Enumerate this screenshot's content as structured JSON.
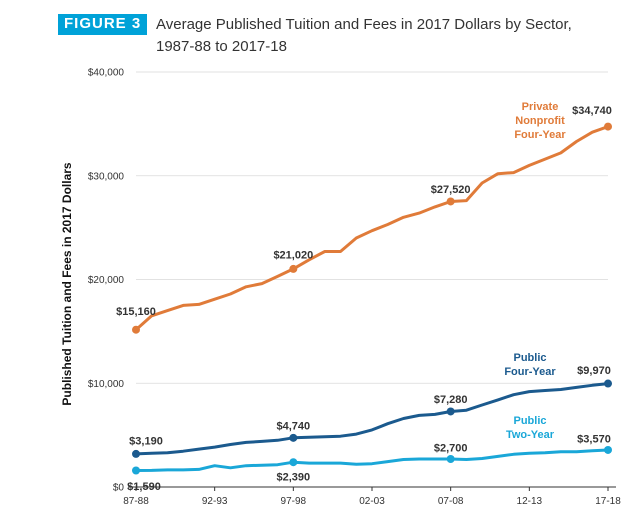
{
  "figure": {
    "badge": "FIGURE 3",
    "title_line1": "Average Published Tuition and Fees in 2017 Dollars by Sector,",
    "title_line2": "1987-88 to 2017-18"
  },
  "chart_data": {
    "type": "line",
    "title": "Average Published Tuition and Fees in 2017 Dollars by Sector, 1987-88 to 2017-18",
    "ylabel": "Published Tuition and Fees in 2017 Dollars",
    "xlabel": "",
    "ylim": [
      0,
      40000
    ],
    "yticks": [
      0,
      10000,
      20000,
      30000,
      40000
    ],
    "ytick_labels": [
      "$0",
      "$10,000",
      "$20,000",
      "$30,000",
      "$40,000"
    ],
    "x": [
      "87-88",
      "88-89",
      "89-90",
      "90-91",
      "91-92",
      "92-93",
      "93-94",
      "94-95",
      "95-96",
      "96-97",
      "97-98",
      "98-99",
      "99-00",
      "00-01",
      "01-02",
      "02-03",
      "03-04",
      "04-05",
      "05-06",
      "06-07",
      "07-08",
      "08-09",
      "09-10",
      "10-11",
      "11-12",
      "12-13",
      "13-14",
      "14-15",
      "15-16",
      "16-17",
      "17-18"
    ],
    "xtick_labels": [
      "87-88",
      "92-93",
      "97-98",
      "02-03",
      "07-08",
      "12-13",
      "17-18"
    ],
    "xtick_indices": [
      0,
      5,
      10,
      15,
      20,
      25,
      30
    ],
    "grid": "horizontal",
    "series": [
      {
        "name": "Private Nonprofit Four-Year",
        "name_lines": [
          "Private",
          "Nonprofit",
          "Four-Year"
        ],
        "color": "#e07b39",
        "values": [
          15160,
          16500,
          17000,
          17500,
          17600,
          18100,
          18600,
          19300,
          19600,
          20300,
          21020,
          21900,
          22700,
          22700,
          24000,
          24700,
          25300,
          26000,
          26400,
          27000,
          27520,
          27600,
          29300,
          30200,
          30300,
          31000,
          31600,
          32200,
          33300,
          34200,
          34740
        ],
        "labels": [
          {
            "i": 0,
            "text": "$15,160"
          },
          {
            "i": 10,
            "text": "$21,020"
          },
          {
            "i": 20,
            "text": "$27,520"
          },
          {
            "i": 30,
            "text": "$34,740"
          }
        ]
      },
      {
        "name": "Public Four-Year",
        "name_lines": [
          "Public",
          "Four-Year"
        ],
        "color": "#1b5a8e",
        "values": [
          3190,
          3250,
          3300,
          3450,
          3650,
          3850,
          4100,
          4300,
          4400,
          4500,
          4740,
          4800,
          4850,
          4900,
          5100,
          5500,
          6100,
          6600,
          6900,
          7000,
          7280,
          7400,
          7900,
          8400,
          8900,
          9200,
          9300,
          9400,
          9600,
          9800,
          9970
        ],
        "labels": [
          {
            "i": 0,
            "text": "$3,190"
          },
          {
            "i": 10,
            "text": "$4,740"
          },
          {
            "i": 20,
            "text": "$7,280"
          },
          {
            "i": 30,
            "text": "$9,970"
          }
        ]
      },
      {
        "name": "Public Two-Year",
        "name_lines": [
          "Public",
          "Two-Year"
        ],
        "color": "#1aa7d8",
        "values": [
          1590,
          1600,
          1650,
          1650,
          1700,
          2050,
          1850,
          2050,
          2100,
          2150,
          2390,
          2300,
          2300,
          2300,
          2200,
          2250,
          2450,
          2650,
          2700,
          2700,
          2700,
          2650,
          2750,
          2950,
          3150,
          3250,
          3300,
          3400,
          3400,
          3500,
          3570
        ],
        "labels": [
          {
            "i": 0,
            "text": "$1,590"
          },
          {
            "i": 10,
            "text": "$2,390"
          },
          {
            "i": 20,
            "text": "$2,700"
          },
          {
            "i": 30,
            "text": "$3,570"
          }
        ]
      }
    ]
  }
}
